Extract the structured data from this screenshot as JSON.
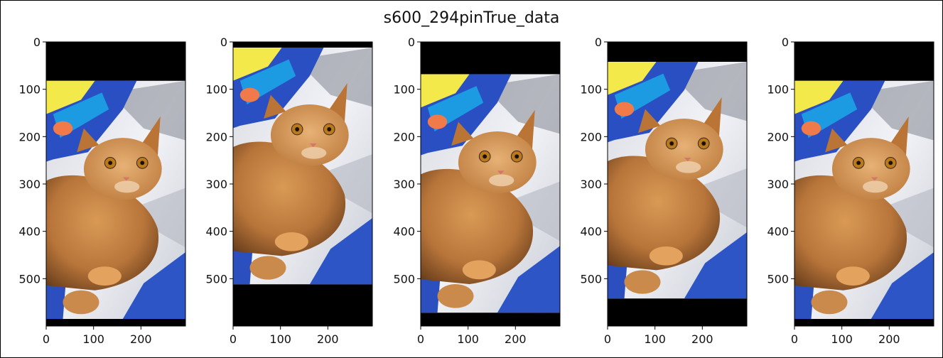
{
  "figure": {
    "title": "s600_294pinTrue_data"
  },
  "chart_data": [
    {
      "type": "image",
      "image_content": "orange tabby cat lying on white sheet next to blue fabric",
      "xlim": [
        0,
        294
      ],
      "ylim": [
        600,
        0
      ],
      "xticks": [
        0,
        100,
        200
      ],
      "yticks": [
        0,
        100,
        200,
        300,
        400,
        500
      ],
      "content_extent": [
        0,
        294,
        82,
        585
      ],
      "padding_color": "#000000"
    },
    {
      "type": "image",
      "image_content": "orange tabby cat lying on white sheet next to blue fabric",
      "xlim": [
        0,
        294
      ],
      "ylim": [
        600,
        0
      ],
      "xticks": [
        0,
        100,
        200
      ],
      "yticks": [
        0,
        100,
        200,
        300,
        400,
        500
      ],
      "content_extent": [
        0,
        294,
        12,
        512
      ],
      "padding_color": "#000000"
    },
    {
      "type": "image",
      "image_content": "orange tabby cat lying on white sheet next to blue fabric",
      "xlim": [
        0,
        294
      ],
      "ylim": [
        600,
        0
      ],
      "xticks": [
        0,
        100,
        200
      ],
      "yticks": [
        0,
        100,
        200,
        300,
        400,
        500
      ],
      "content_extent": [
        0,
        294,
        68,
        572
      ],
      "padding_color": "#000000"
    },
    {
      "type": "image",
      "image_content": "orange tabby cat lying on white sheet next to blue fabric",
      "xlim": [
        0,
        294
      ],
      "ylim": [
        600,
        0
      ],
      "xticks": [
        0,
        100,
        200
      ],
      "yticks": [
        0,
        100,
        200,
        300,
        400,
        500
      ],
      "content_extent": [
        0,
        294,
        42,
        542
      ],
      "padding_color": "#000000"
    },
    {
      "type": "image",
      "image_content": "orange tabby cat lying on white sheet next to blue fabric",
      "xlim": [
        0,
        294
      ],
      "ylim": [
        600,
        0
      ],
      "xticks": [
        0,
        100,
        200
      ],
      "yticks": [
        0,
        100,
        200,
        300,
        400,
        500
      ],
      "content_extent": [
        0,
        294,
        82,
        585
      ],
      "padding_color": "#000000"
    }
  ]
}
